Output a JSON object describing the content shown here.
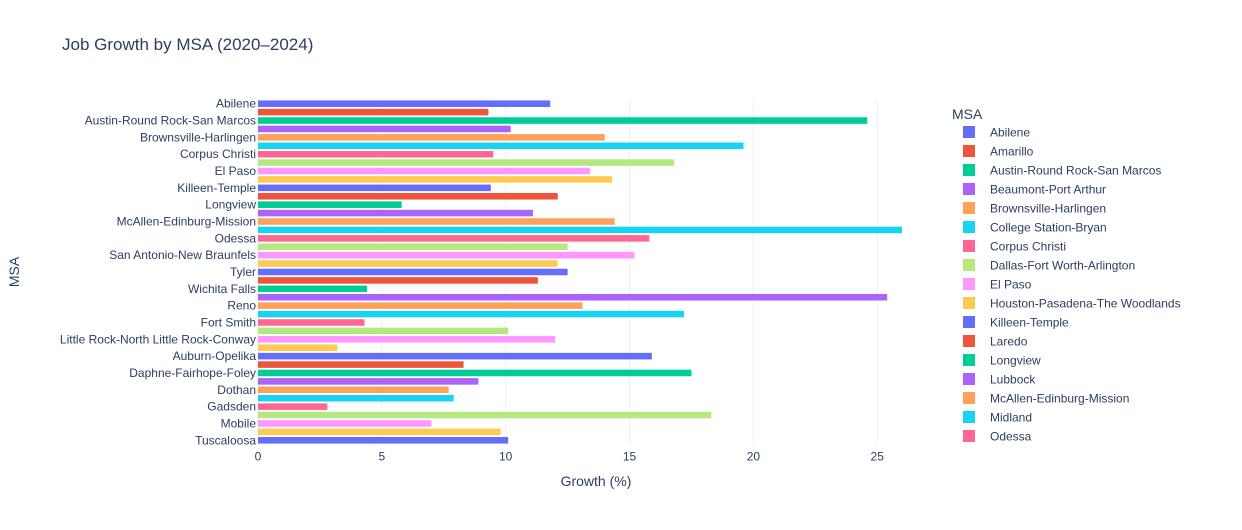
{
  "chart_data": {
    "type": "bar",
    "orientation": "horizontal",
    "title": "Job Growth by MSA (2020–2024)",
    "xlabel": "Growth (%)",
    "ylabel": "MSA",
    "xlim": [
      0,
      26
    ],
    "xticks": [
      0,
      5,
      10,
      15,
      20,
      25
    ],
    "grid": "vertical",
    "legend": {
      "title": "MSA",
      "placement": "right"
    },
    "bars": [
      {
        "msa": "Abilene",
        "value": 11.8,
        "color": "#636efa",
        "label": "Abilene"
      },
      {
        "msa": "Amarillo",
        "value": 9.3,
        "color": "#ef553b",
        "label": ""
      },
      {
        "msa": "Austin-Round Rock-San Marcos",
        "value": 24.6,
        "color": "#00cc96",
        "label": "Austin-Round Rock-San Marcos"
      },
      {
        "msa": "Beaumont-Port Arthur",
        "value": 10.2,
        "color": "#ab63fa",
        "label": ""
      },
      {
        "msa": "Brownsville-Harlingen",
        "value": 14.0,
        "color": "#ffa15a",
        "label": "Brownsville-Harlingen"
      },
      {
        "msa": "College Station-Bryan",
        "value": 19.6,
        "color": "#19d3f3",
        "label": ""
      },
      {
        "msa": "Corpus Christi",
        "value": 9.5,
        "color": "#ff6692",
        "label": "Corpus Christi"
      },
      {
        "msa": "Dallas-Fort Worth-Arlington",
        "value": 16.8,
        "color": "#b6e880",
        "label": ""
      },
      {
        "msa": "El Paso",
        "value": 13.4,
        "color": "#ff97ff",
        "label": "El Paso"
      },
      {
        "msa": "Houston-Pasadena-The Woodlands",
        "value": 14.3,
        "color": "#fecb52",
        "label": ""
      },
      {
        "msa": "Killeen-Temple",
        "value": 9.4,
        "color": "#636efa",
        "label": "Killeen-Temple"
      },
      {
        "msa": "Laredo",
        "value": 12.1,
        "color": "#ef553b",
        "label": ""
      },
      {
        "msa": "Longview",
        "value": 5.8,
        "color": "#00cc96",
        "label": "Longview"
      },
      {
        "msa": "Lubbock",
        "value": 11.1,
        "color": "#ab63fa",
        "label": ""
      },
      {
        "msa": "McAllen-Edinburg-Mission",
        "value": 14.4,
        "color": "#ffa15a",
        "label": "McAllen-Edinburg-Mission"
      },
      {
        "msa": "Midland",
        "value": 26.0,
        "color": "#19d3f3",
        "label": ""
      },
      {
        "msa": "Odessa",
        "value": 15.8,
        "color": "#ff6692",
        "label": "Odessa"
      },
      {
        "msa": "",
        "value": 12.5,
        "color": "#b6e880",
        "label": ""
      },
      {
        "msa": "San Antonio-New Braunfels",
        "value": 15.2,
        "color": "#ff97ff",
        "label": "San Antonio-New Braunfels"
      },
      {
        "msa": "",
        "value": 12.1,
        "color": "#fecb52",
        "label": ""
      },
      {
        "msa": "Tyler",
        "value": 12.5,
        "color": "#636efa",
        "label": "Tyler"
      },
      {
        "msa": "",
        "value": 11.3,
        "color": "#ef553b",
        "label": ""
      },
      {
        "msa": "Wichita Falls",
        "value": 4.4,
        "color": "#00cc96",
        "label": "Wichita Falls"
      },
      {
        "msa": "",
        "value": 25.4,
        "color": "#ab63fa",
        "label": ""
      },
      {
        "msa": "Reno",
        "value": 13.1,
        "color": "#ffa15a",
        "label": "Reno"
      },
      {
        "msa": "",
        "value": 17.2,
        "color": "#19d3f3",
        "label": ""
      },
      {
        "msa": "Fort Smith",
        "value": 4.3,
        "color": "#ff6692",
        "label": "Fort Smith"
      },
      {
        "msa": "",
        "value": 10.1,
        "color": "#b6e880",
        "label": ""
      },
      {
        "msa": "Little Rock-North Little Rock-Conway",
        "value": 12.0,
        "color": "#ff97ff",
        "label": "Little Rock-North Little Rock-Conway"
      },
      {
        "msa": "",
        "value": 3.2,
        "color": "#fecb52",
        "label": ""
      },
      {
        "msa": "Auburn-Opelika",
        "value": 15.9,
        "color": "#636efa",
        "label": "Auburn-Opelika"
      },
      {
        "msa": "",
        "value": 8.3,
        "color": "#ef553b",
        "label": ""
      },
      {
        "msa": "Daphne-Fairhope-Foley",
        "value": 17.5,
        "color": "#00cc96",
        "label": "Daphne-Fairhope-Foley"
      },
      {
        "msa": "",
        "value": 8.9,
        "color": "#ab63fa",
        "label": ""
      },
      {
        "msa": "Dothan",
        "value": 7.7,
        "color": "#ffa15a",
        "label": "Dothan"
      },
      {
        "msa": "",
        "value": 7.9,
        "color": "#19d3f3",
        "label": ""
      },
      {
        "msa": "Gadsden",
        "value": 2.8,
        "color": "#ff6692",
        "label": "Gadsden"
      },
      {
        "msa": "",
        "value": 18.3,
        "color": "#b6e880",
        "label": ""
      },
      {
        "msa": "Mobile",
        "value": 7.0,
        "color": "#ff97ff",
        "label": "Mobile"
      },
      {
        "msa": "",
        "value": 9.8,
        "color": "#fecb52",
        "label": ""
      },
      {
        "msa": "Tuscaloosa",
        "value": 10.1,
        "color": "#636efa",
        "label": "Tuscaloosa"
      }
    ],
    "legend_entries": [
      {
        "name": "Abilene",
        "color": "#636efa"
      },
      {
        "name": "Amarillo",
        "color": "#ef553b"
      },
      {
        "name": "Austin-Round Rock-San Marcos",
        "color": "#00cc96"
      },
      {
        "name": "Beaumont-Port Arthur",
        "color": "#ab63fa"
      },
      {
        "name": "Brownsville-Harlingen",
        "color": "#ffa15a"
      },
      {
        "name": "College Station-Bryan",
        "color": "#19d3f3"
      },
      {
        "name": "Corpus Christi",
        "color": "#ff6692"
      },
      {
        "name": "Dallas-Fort Worth-Arlington",
        "color": "#b6e880"
      },
      {
        "name": "El Paso",
        "color": "#ff97ff"
      },
      {
        "name": "Houston-Pasadena-The Woodlands",
        "color": "#fecb52"
      },
      {
        "name": "Killeen-Temple",
        "color": "#636efa"
      },
      {
        "name": "Laredo",
        "color": "#ef553b"
      },
      {
        "name": "Longview",
        "color": "#00cc96"
      },
      {
        "name": "Lubbock",
        "color": "#ab63fa"
      },
      {
        "name": "McAllen-Edinburg-Mission",
        "color": "#ffa15a"
      },
      {
        "name": "Midland",
        "color": "#19d3f3"
      },
      {
        "name": "Odessa",
        "color": "#ff6692"
      }
    ]
  }
}
